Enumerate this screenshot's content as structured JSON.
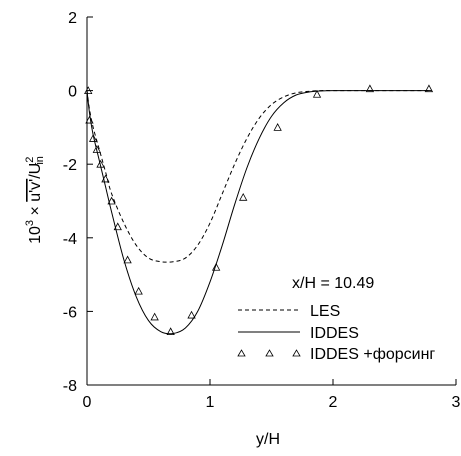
{
  "chart_data": {
    "type": "line",
    "xlabel": "y/H",
    "ylabel": {
      "prefix": "10",
      "prefix_exp": "3",
      "times": " × ",
      "overline": "u'v'",
      "rest": "/U",
      "rest_exp": "2",
      "rest_sub": "in"
    },
    "annotation": "x/H = 10.49",
    "xlim": [
      0,
      3
    ],
    "ylim": [
      -8,
      2
    ],
    "xticks": [
      "0",
      "1",
      "2",
      "3"
    ],
    "yticks": [
      "2",
      "0",
      "-2",
      "-4",
      "-6",
      "-8"
    ],
    "xtick_values": [
      0,
      1,
      2,
      3
    ],
    "ytick_values": [
      2,
      0,
      -2,
      -4,
      -6,
      -8
    ],
    "grid": false,
    "legend_position": "right-middle",
    "series": [
      {
        "name": "LES",
        "style": "dashed",
        "x": [
          0,
          0.02,
          0.05,
          0.1,
          0.15,
          0.2,
          0.3,
          0.4,
          0.5,
          0.6,
          0.7,
          0.8,
          0.9,
          1.0,
          1.1,
          1.2,
          1.3,
          1.4,
          1.5,
          1.6,
          1.7,
          1.8,
          1.9,
          2.0,
          2.2,
          2.5,
          2.8
        ],
        "y": [
          0,
          -0.5,
          -1.0,
          -1.6,
          -2.2,
          -2.8,
          -3.6,
          -4.2,
          -4.55,
          -4.65,
          -4.65,
          -4.55,
          -4.2,
          -3.6,
          -2.8,
          -2.0,
          -1.3,
          -0.75,
          -0.38,
          -0.17,
          -0.06,
          -0.02,
          0,
          0,
          0,
          0,
          0
        ]
      },
      {
        "name": "IDDES",
        "style": "solid",
        "x": [
          0,
          0.02,
          0.05,
          0.1,
          0.15,
          0.2,
          0.3,
          0.4,
          0.5,
          0.6,
          0.7,
          0.8,
          0.9,
          1.0,
          1.1,
          1.2,
          1.3,
          1.4,
          1.5,
          1.6,
          1.7,
          1.8,
          1.9,
          2.0,
          2.2,
          2.5,
          2.8
        ],
        "y": [
          0,
          -0.6,
          -1.2,
          -1.9,
          -2.6,
          -3.3,
          -4.6,
          -5.6,
          -6.25,
          -6.55,
          -6.6,
          -6.45,
          -6.0,
          -5.2,
          -4.2,
          -3.1,
          -2.1,
          -1.3,
          -0.7,
          -0.33,
          -0.12,
          -0.04,
          -0.01,
          0,
          0,
          0,
          0
        ]
      },
      {
        "name": "IDDES +форсинг",
        "style": "triangles",
        "x": [
          0.01,
          0.02,
          0.05,
          0.08,
          0.11,
          0.15,
          0.2,
          0.25,
          0.33,
          0.42,
          0.55,
          0.68,
          0.85,
          1.05,
          1.27,
          1.55,
          1.87,
          2.3,
          2.78
        ],
        "y": [
          0.0,
          -0.8,
          -1.3,
          -1.6,
          -2.0,
          -2.4,
          -3.0,
          -3.7,
          -4.6,
          -5.45,
          -6.15,
          -6.55,
          -6.1,
          -4.8,
          -2.9,
          -1.0,
          -0.1,
          0.05,
          0.05
        ]
      }
    ]
  }
}
